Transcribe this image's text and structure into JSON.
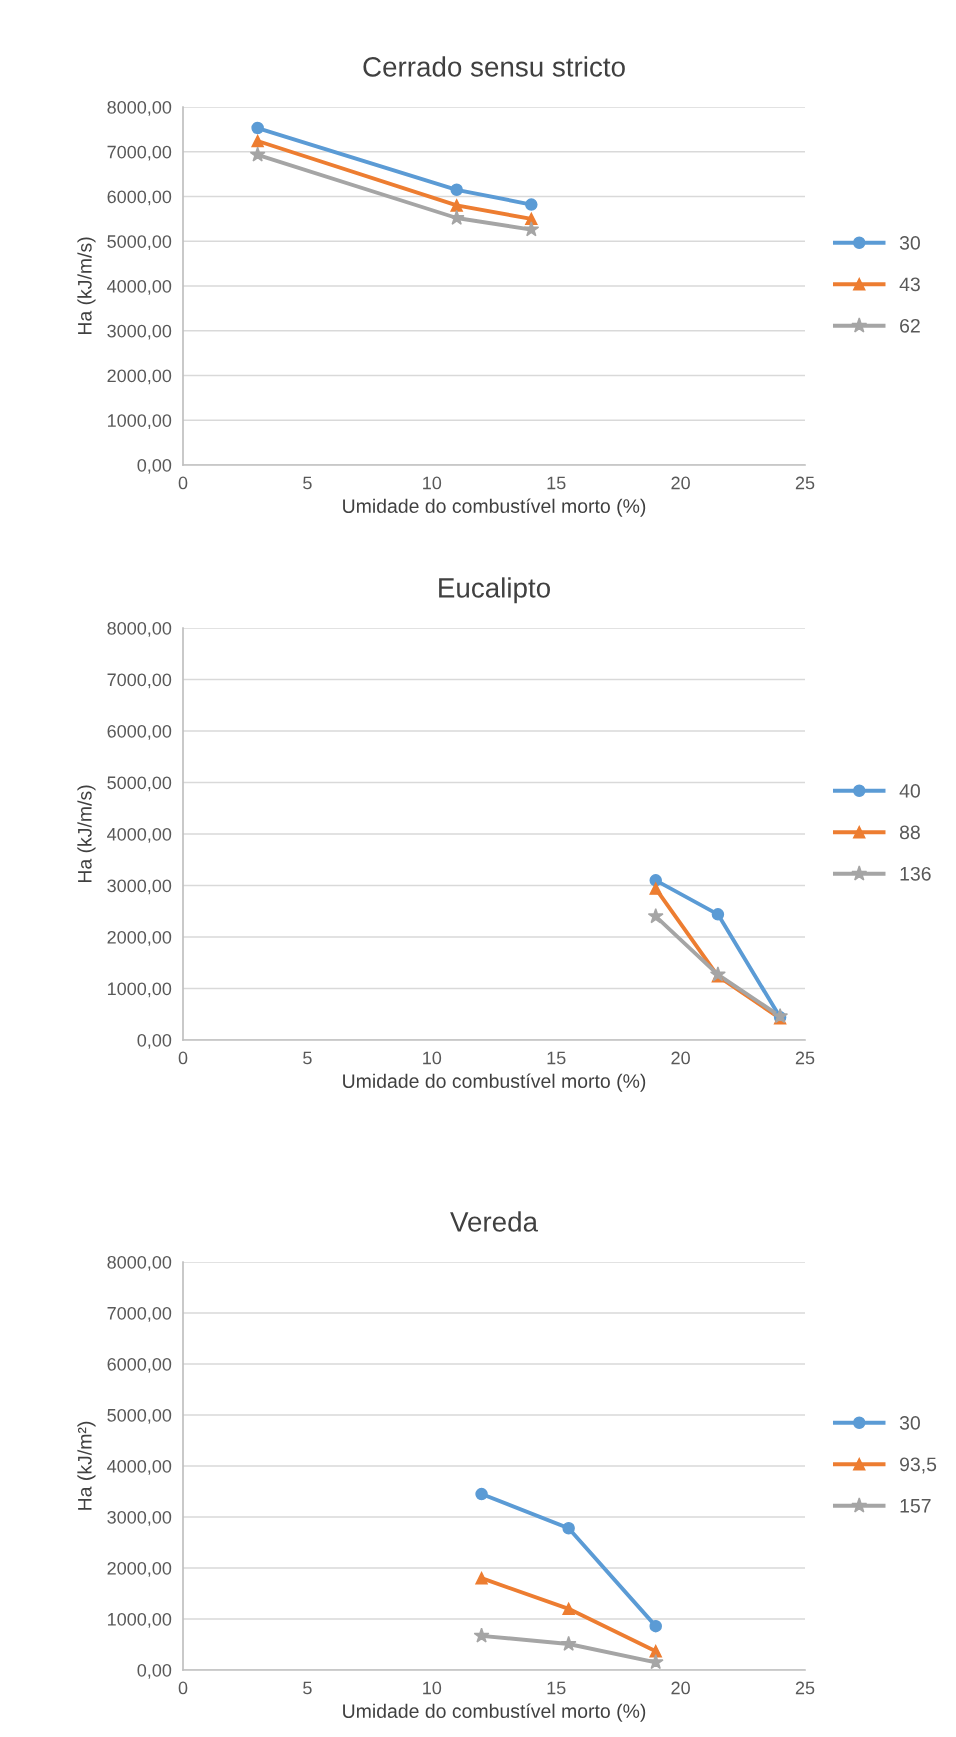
{
  "chart_data": [
    {
      "type": "line",
      "title": "Cerrado sensu stricto",
      "xlabel": "Umidade do combustível morto (%)",
      "ylabel": "Ha (kJ/m/s)",
      "xlim": [
        0,
        25
      ],
      "xticks": [
        0,
        5,
        10,
        15,
        20,
        25
      ],
      "ylim": [
        0,
        8000
      ],
      "yticks": [
        {
          "value": 0,
          "label": "0,00"
        },
        {
          "value": 1000,
          "label": "1000,00"
        },
        {
          "value": 2000,
          "label": "2000,00"
        },
        {
          "value": 3000,
          "label": "3000,00"
        },
        {
          "value": 4000,
          "label": "4000,00"
        },
        {
          "value": 5000,
          "label": "5000,00"
        },
        {
          "value": 6000,
          "label": "6000,00"
        },
        {
          "value": 7000,
          "label": "7000,00"
        },
        {
          "value": 8000,
          "label": "8000,00"
        }
      ],
      "grid": "y",
      "legend": "right",
      "x": [
        3,
        11,
        14
      ],
      "series": [
        {
          "name": "30",
          "color": "#5b9bd5",
          "marker": "circle",
          "values": [
            7530,
            6150,
            5820
          ]
        },
        {
          "name": "43",
          "color": "#ed7d31",
          "marker": "triangle",
          "values": [
            7240,
            5800,
            5500
          ]
        },
        {
          "name": "62",
          "color": "#a5a5a5",
          "marker": "star",
          "values": [
            6930,
            5520,
            5260
          ]
        }
      ]
    },
    {
      "type": "line",
      "title": "Eucalipto",
      "xlabel": "Umidade do combustível morto (%)",
      "ylabel": "Ha (kJ/m/s)",
      "xlim": [
        0,
        25
      ],
      "xticks": [
        0,
        5,
        10,
        15,
        20,
        25
      ],
      "ylim": [
        0,
        8000
      ],
      "yticks": [
        {
          "value": 0,
          "label": "0,00"
        },
        {
          "value": 1000,
          "label": "1000,00"
        },
        {
          "value": 2000,
          "label": "2000,00"
        },
        {
          "value": 3000,
          "label": "3000,00"
        },
        {
          "value": 4000,
          "label": "4000,00"
        },
        {
          "value": 5000,
          "label": "5000,00"
        },
        {
          "value": 6000,
          "label": "6000,00"
        },
        {
          "value": 7000,
          "label": "7000,00"
        },
        {
          "value": 8000,
          "label": "8000,00"
        }
      ],
      "grid": "y",
      "legend": "right",
      "x": [
        19,
        21.5,
        24
      ],
      "series": [
        {
          "name": "40",
          "color": "#5b9bd5",
          "marker": "circle",
          "values": [
            3100,
            2440,
            440
          ]
        },
        {
          "name": "88",
          "color": "#ed7d31",
          "marker": "triangle",
          "values": [
            2940,
            1240,
            420
          ]
        },
        {
          "name": "136",
          "color": "#a5a5a5",
          "marker": "star",
          "values": [
            2400,
            1270,
            460
          ]
        }
      ]
    },
    {
      "type": "line",
      "title": "Vereda",
      "xlabel": "Umidade do combustível morto (%)",
      "ylabel": "Ha (kJ/m²)",
      "xlim": [
        0,
        25
      ],
      "xticks": [
        0,
        5,
        10,
        15,
        20,
        25
      ],
      "ylim": [
        0,
        8000
      ],
      "yticks": [
        {
          "value": 0,
          "label": "0,00"
        },
        {
          "value": 1000,
          "label": "1000,00"
        },
        {
          "value": 2000,
          "label": "2000,00"
        },
        {
          "value": 3000,
          "label": "3000,00"
        },
        {
          "value": 4000,
          "label": "4000,00"
        },
        {
          "value": 5000,
          "label": "5000,00"
        },
        {
          "value": 6000,
          "label": "6000,00"
        },
        {
          "value": 7000,
          "label": "7000,00"
        },
        {
          "value": 8000,
          "label": "8000,00"
        }
      ],
      "grid": "y",
      "legend": "right",
      "x": [
        12,
        15.5,
        19
      ],
      "series": [
        {
          "name": "30",
          "color": "#5b9bd5",
          "marker": "circle",
          "values": [
            3450,
            2780,
            860
          ]
        },
        {
          "name": "93,5",
          "color": "#ed7d31",
          "marker": "triangle",
          "values": [
            1800,
            1200,
            370
          ]
        },
        {
          "name": "157",
          "color": "#a5a5a5",
          "marker": "star",
          "values": [
            670,
            510,
            150
          ]
        }
      ]
    }
  ]
}
